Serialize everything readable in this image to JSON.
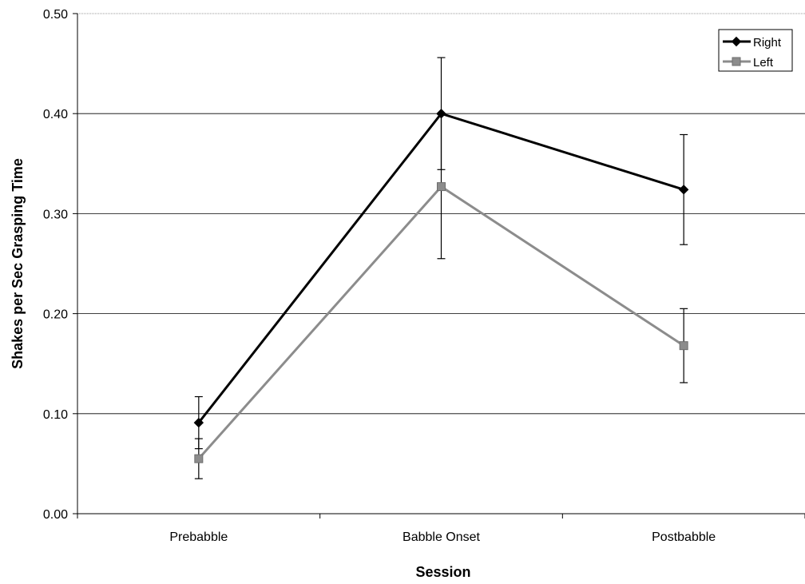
{
  "chart_data": {
    "type": "line",
    "title": "",
    "xlabel": "Session",
    "ylabel": "Shakes per Sec Grasping Time",
    "categories": [
      "Prebabble",
      "Babble Onset",
      "Postbabble"
    ],
    "ylim": [
      0,
      0.5
    ],
    "yticks": [
      "0.00",
      "0.10",
      "0.20",
      "0.30",
      "0.40",
      "0.50"
    ],
    "grid": true,
    "legend_position": "top-right",
    "series": [
      {
        "name": "Right",
        "color": "#000000",
        "marker": "diamond",
        "values": [
          0.091,
          0.4,
          0.324
        ],
        "error": [
          0.026,
          0.056,
          0.055
        ]
      },
      {
        "name": "Left",
        "color": "#8c8c8c",
        "marker": "square",
        "values": [
          0.055,
          0.327,
          0.168
        ],
        "error": [
          0.02,
          0.072,
          0.037
        ]
      }
    ]
  }
}
